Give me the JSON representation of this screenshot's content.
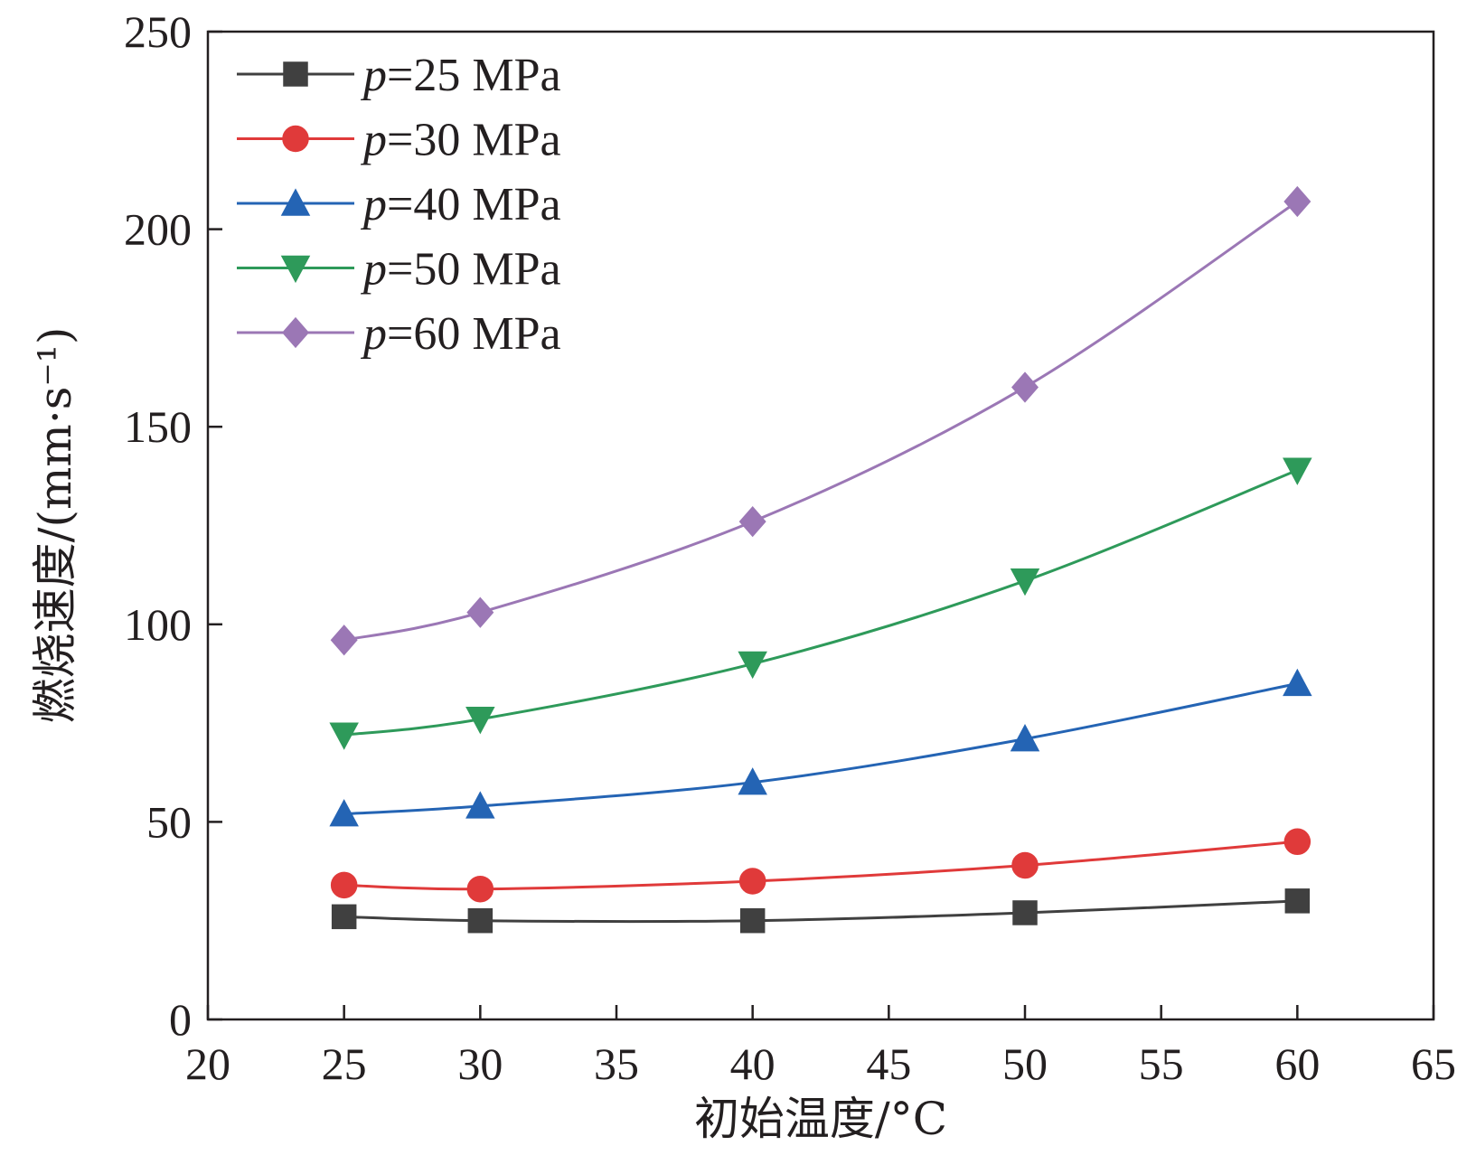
{
  "chart_data": {
    "type": "line",
    "xlabel": "初始温度/°C",
    "ylabel": "燃烧速度/(mm·s⁻¹)",
    "xlim": [
      20,
      65
    ],
    "ylim": [
      0,
      250
    ],
    "x_ticks": [
      20,
      25,
      30,
      35,
      40,
      45,
      50,
      55,
      60,
      65
    ],
    "y_ticks": [
      0,
      50,
      100,
      150,
      200,
      250
    ],
    "grid": false,
    "legend_position": "top-left",
    "x": [
      25,
      30,
      40,
      50,
      60
    ],
    "series": [
      {
        "name": "p=25 MPa",
        "name_prefix": "p",
        "name_suffix": "=25 MPa",
        "color": "#404040",
        "marker": "square",
        "values": [
          26,
          25,
          25,
          27,
          30
        ]
      },
      {
        "name": "p=30 MPa",
        "name_prefix": "p",
        "name_suffix": "=30 MPa",
        "color": "#e03a3a",
        "marker": "circle",
        "values": [
          34,
          33,
          35,
          39,
          45
        ]
      },
      {
        "name": "p=40 MPa",
        "name_prefix": "p",
        "name_suffix": "=40 MPa",
        "color": "#2464b4",
        "marker": "triangle-up",
        "values": [
          52,
          54,
          60,
          71,
          85
        ]
      },
      {
        "name": "p=50 MPa",
        "name_prefix": "p",
        "name_suffix": "=50 MPa",
        "color": "#2e9a5a",
        "marker": "triangle-down",
        "values": [
          72,
          76,
          90,
          111,
          139
        ]
      },
      {
        "name": "p=60 MPa",
        "name_prefix": "p",
        "name_suffix": "=60 MPa",
        "color": "#9b77b5",
        "marker": "diamond",
        "values": [
          96,
          103,
          126,
          160,
          207
        ]
      }
    ]
  }
}
